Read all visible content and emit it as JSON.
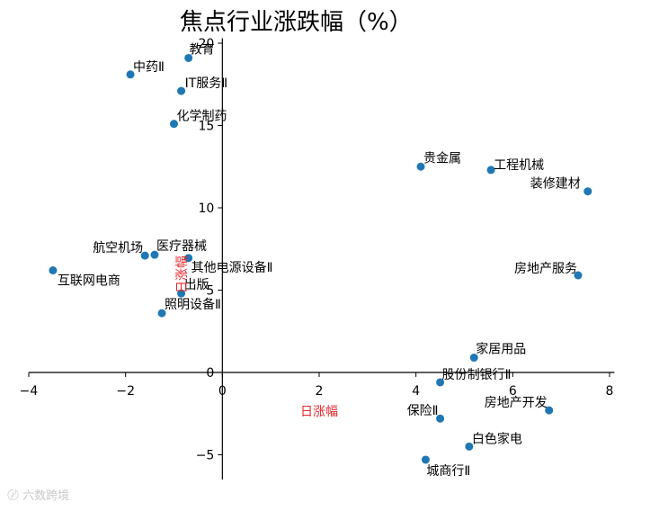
{
  "chart_data": {
    "type": "scatter",
    "title": "焦点行业涨跌幅（%）",
    "xlabel": "日涨幅",
    "ylabel": "日涨幅",
    "xlim": [
      -4.0,
      8.1
    ],
    "ylim": [
      -6.5,
      20.3
    ],
    "xticks": [
      -4,
      -2,
      0,
      2,
      4,
      6,
      8
    ],
    "yticks": [
      -5,
      0,
      5,
      10,
      15,
      20
    ],
    "grid": false,
    "color": "#1f77b4",
    "points": [
      {
        "label": "教育",
        "x": -0.7,
        "y": 19.1
      },
      {
        "label": "中药Ⅱ",
        "x": -1.9,
        "y": 18.1
      },
      {
        "label": "IT服务Ⅱ",
        "x": -0.85,
        "y": 17.1
      },
      {
        "label": "化学制药",
        "x": -1.0,
        "y": 15.1
      },
      {
        "label": "贵金属",
        "x": 4.1,
        "y": 12.5
      },
      {
        "label": "工程机械",
        "x": 5.55,
        "y": 12.3
      },
      {
        "label": "装修建材",
        "x": 7.55,
        "y": 11.0
      },
      {
        "label": "航空机场",
        "x": -1.6,
        "y": 7.1
      },
      {
        "label": "医疗器械",
        "x": -1.4,
        "y": 7.15
      },
      {
        "label": "其他电源设备Ⅱ",
        "x": -0.7,
        "y": 6.95
      },
      {
        "label": "互联网电商",
        "x": -3.5,
        "y": 6.2
      },
      {
        "label": "出版",
        "x": -0.85,
        "y": 4.8
      },
      {
        "label": "照明设备Ⅱ",
        "x": -1.25,
        "y": 3.6
      },
      {
        "label": "房地产服务",
        "x": 7.35,
        "y": 5.9
      },
      {
        "label": "家居用品",
        "x": 5.2,
        "y": 0.9
      },
      {
        "label": "股份制银行Ⅱ",
        "x": 4.5,
        "y": -0.6
      },
      {
        "label": "保险Ⅱ",
        "x": 4.5,
        "y": -2.8
      },
      {
        "label": "房地产开发",
        "x": 6.75,
        "y": -2.3
      },
      {
        "label": "白色家电",
        "x": 5.1,
        "y": -4.5
      },
      {
        "label": "城商行Ⅱ",
        "x": 4.2,
        "y": -5.3
      }
    ]
  },
  "watermark": "六数跨境"
}
